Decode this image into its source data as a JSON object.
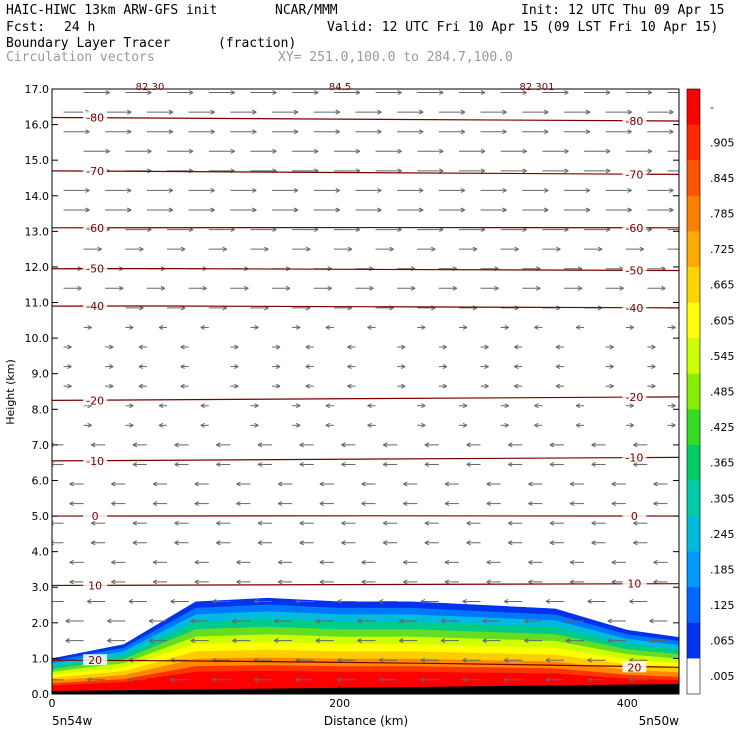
{
  "header": {
    "model": "HAIC-HIWC 13km ARW-GFS init",
    "org": "NCAR/MMM",
    "init": "Init: 12 UTC Thu 09 Apr 15",
    "fcst_label": "Fcst:",
    "fcst_value": "24 h",
    "valid": "Valid: 12 UTC Fri 10 Apr 15 (09 LST Fri 10 Apr 15)",
    "field": "Boundary Layer Tracer",
    "units": "(fraction)",
    "vectors": "Circulation vectors",
    "xsection": "XY= 251.0,100.0 to 284.7,100.0"
  },
  "chart_data": {
    "type": "heatmap",
    "title": "Boundary Layer Tracer (fraction)",
    "xlabel": "Distance (km)",
    "ylabel": "Height (km)",
    "xlim": [
      0,
      436
    ],
    "ylim": [
      0,
      17
    ],
    "xticks": [
      0,
      200,
      400
    ],
    "yticks": [
      "0.0",
      "1.0",
      "2.0",
      "3.0",
      "4.0",
      "5.0",
      "6.0",
      "7.0",
      "8.0",
      "9.0",
      "10.0",
      "11.0",
      "12.0",
      "13.0",
      "14.0",
      "15.0",
      "16.0",
      "17.0"
    ],
    "x_endpoints": {
      "left": "5n54w",
      "right": "5n50w"
    },
    "colorbar": {
      "labels": [
        "-",
        ".905",
        ".845",
        ".785",
        ".725",
        ".665",
        ".605",
        ".545",
        ".485",
        ".425",
        ".365",
        ".305",
        ".245",
        ".185",
        ".125",
        ".065",
        ".005"
      ],
      "colors": [
        "#ff0000",
        "#ff2a00",
        "#ff5500",
        "#ff7f00",
        "#ffaa00",
        "#ffd400",
        "#ffff00",
        "#ccff00",
        "#88ee00",
        "#33dd22",
        "#00cc66",
        "#00ccaa",
        "#00bbdd",
        "#0099ff",
        "#0066ff",
        "#0033ee",
        "#ffffff"
      ]
    },
    "contours": [
      {
        "label": "20",
        "y": [
          0.95,
          0.9,
          0.75
        ]
      },
      {
        "label": "10",
        "y": [
          3.05,
          3.05,
          3.1
        ]
      },
      {
        "label": "0",
        "y": [
          5.0,
          5.0,
          5.0
        ]
      },
      {
        "label": "-10",
        "y": [
          6.55,
          6.6,
          6.65
        ]
      },
      {
        "label": "-20",
        "y": [
          8.25,
          8.3,
          8.35
        ]
      },
      {
        "label": "-40",
        "y": [
          10.9,
          10.9,
          10.85
        ]
      },
      {
        "label": "-50",
        "y": [
          11.95,
          11.95,
          11.9
        ]
      },
      {
        "label": "-60",
        "y": [
          13.1,
          13.1,
          13.1
        ]
      },
      {
        "label": "-70",
        "y": [
          14.7,
          14.65,
          14.6
        ]
      },
      {
        "label": "-80",
        "y": [
          16.2,
          16.15,
          16.1
        ]
      }
    ],
    "partial_labels": [
      "82.30",
      "84.5",
      "82.301"
    ],
    "tracer_top_km": {
      "x": [
        0,
        50,
        100,
        150,
        200,
        250,
        300,
        350,
        400,
        436
      ],
      "top": [
        1.0,
        1.4,
        2.6,
        2.7,
        2.6,
        2.6,
        2.5,
        2.4,
        1.8,
        1.6
      ]
    }
  }
}
